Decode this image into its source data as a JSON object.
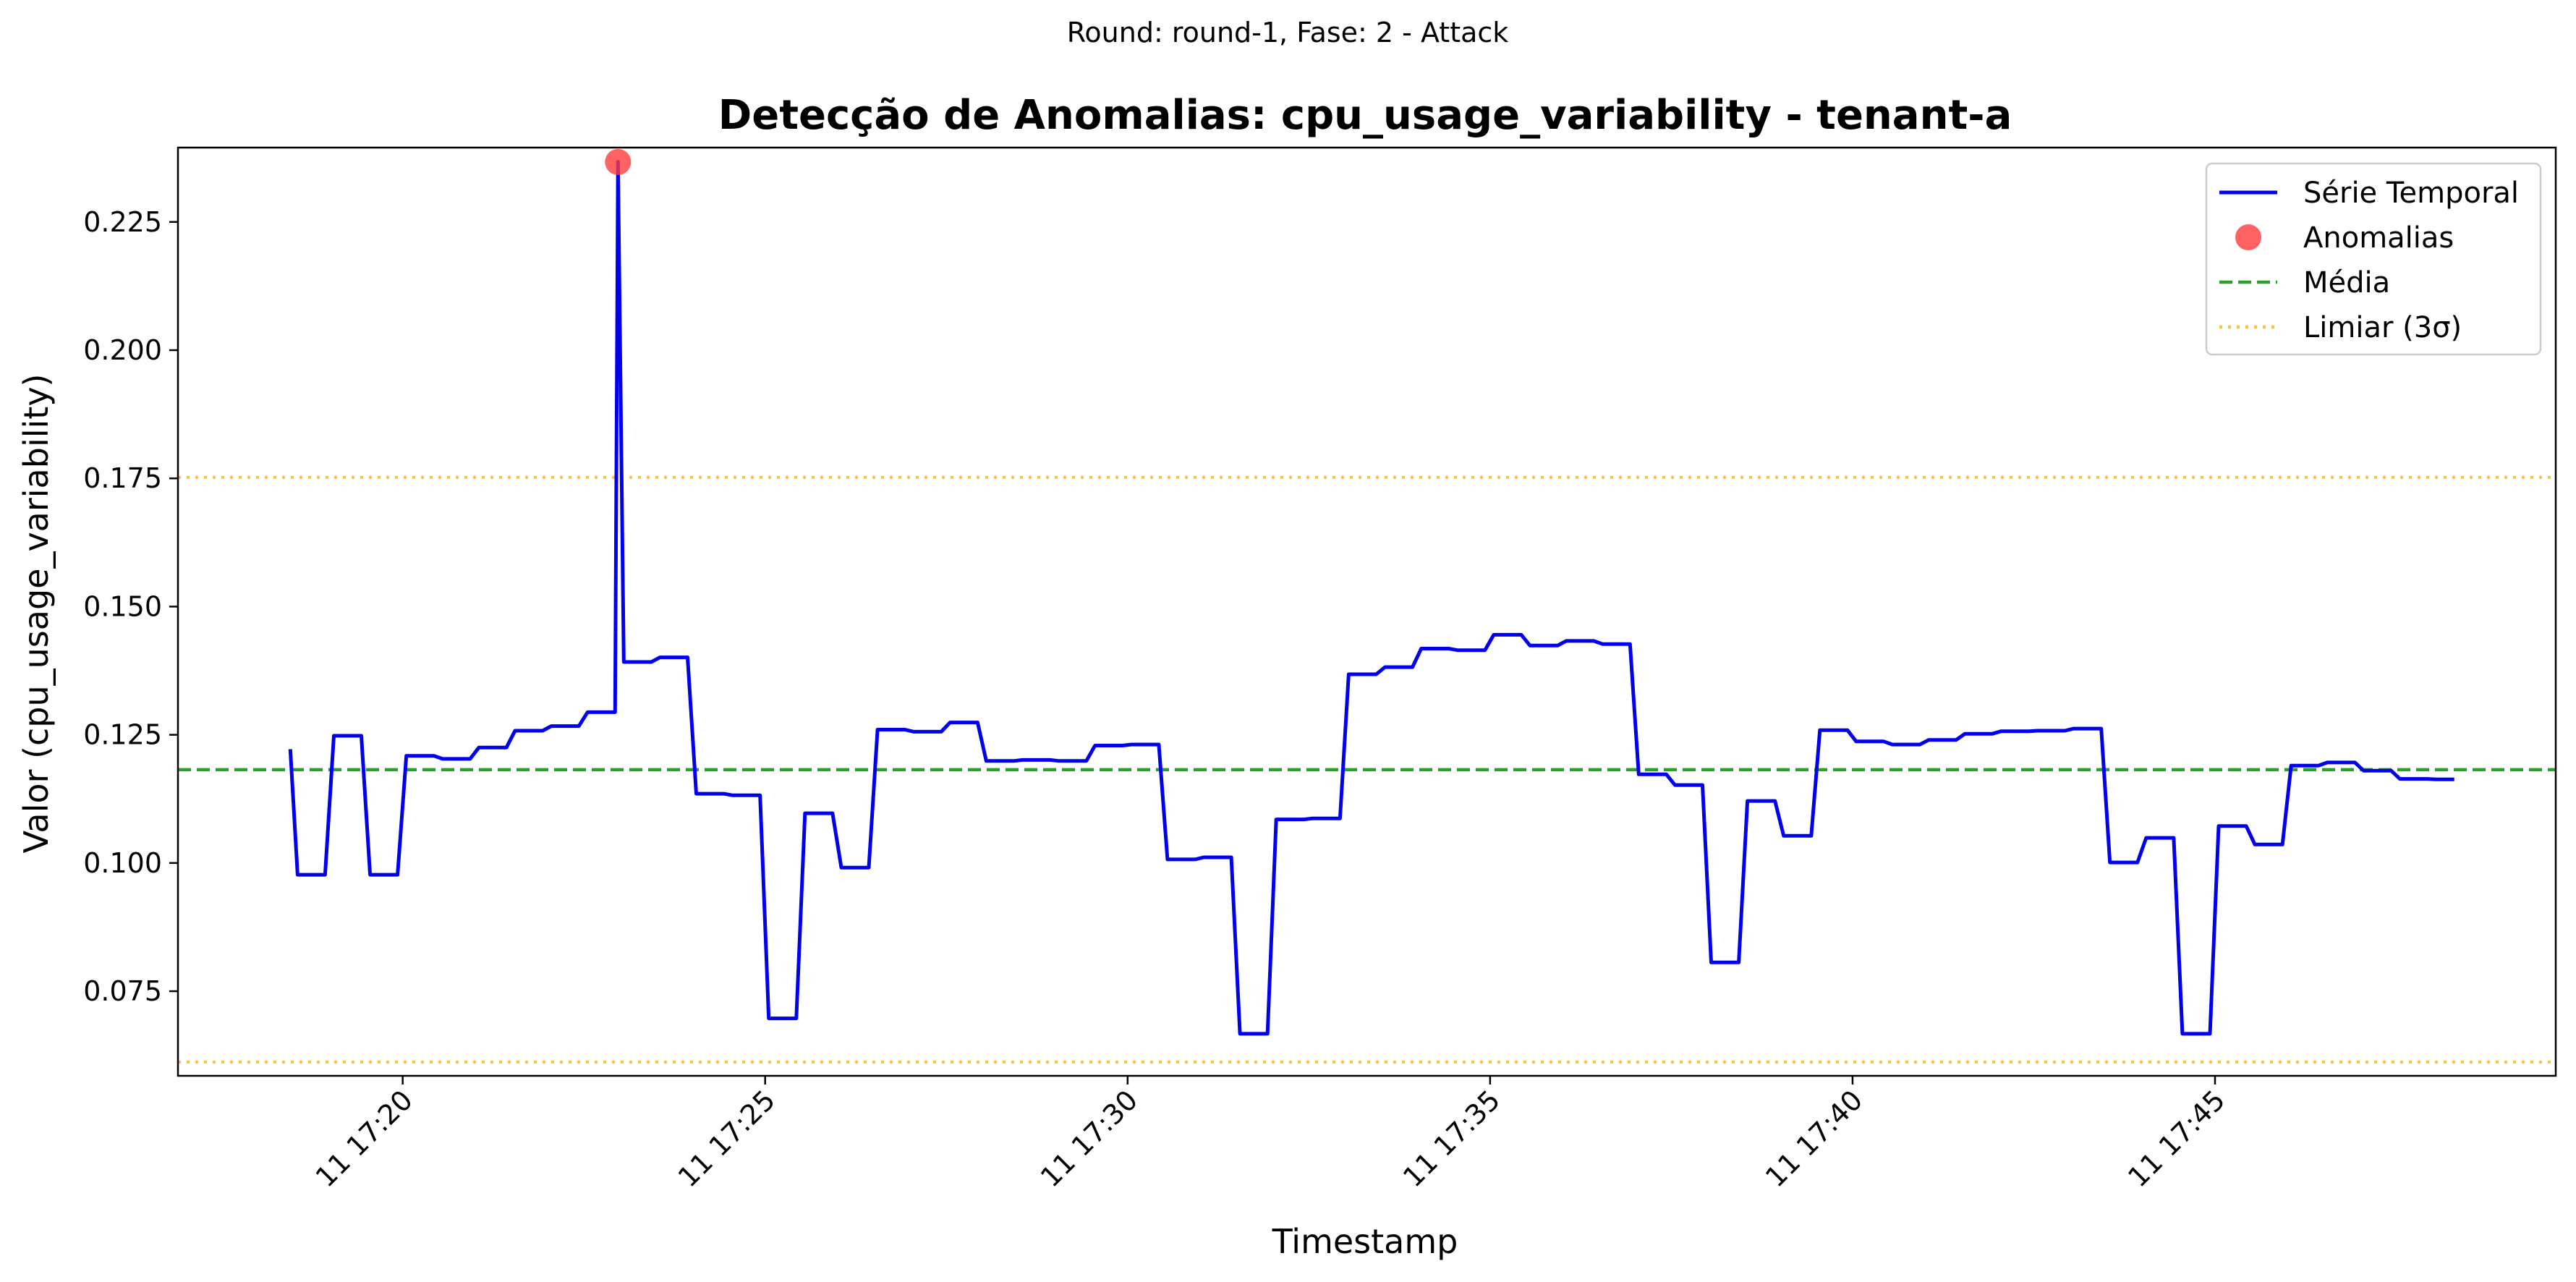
{
  "figure": {
    "suptitle": "Round: round-1, Fase: 2 - Attack"
  },
  "chart_data": {
    "type": "line",
    "title": "Detecção de Anomalias: cpu_usage_variability - tenant-a",
    "xlabel": "Timestamp",
    "ylabel": "Valor (cpu_usage_variability)",
    "x_unit": "minutes after 17:20 on day 11",
    "xlim": [
      -3.1,
      29.7
    ],
    "ylim": [
      0.0585,
      0.2395
    ],
    "xticks": [
      {
        "value": 0,
        "label": "11 17:20"
      },
      {
        "value": 5,
        "label": "11 17:25"
      },
      {
        "value": 10,
        "label": "11 17:30"
      },
      {
        "value": 15,
        "label": "11 17:35"
      },
      {
        "value": 20,
        "label": "11 17:40"
      },
      {
        "value": 25,
        "label": "11 17:45"
      }
    ],
    "yticks": [
      {
        "value": 0.075,
        "label": "0.075"
      },
      {
        "value": 0.1,
        "label": "0.100"
      },
      {
        "value": 0.125,
        "label": "0.125"
      },
      {
        "value": 0.15,
        "label": "0.150"
      },
      {
        "value": 0.175,
        "label": "0.175"
      },
      {
        "value": 0.2,
        "label": "0.200"
      },
      {
        "value": 0.225,
        "label": "0.225"
      }
    ],
    "grid": false,
    "legend_position": "top-right",
    "series": [
      {
        "name": "Série Temporal",
        "color": "#0000ee",
        "style": "solid",
        "points": [
          [
            -1.55,
            0.1222
          ],
          [
            -1.45,
            0.0977
          ],
          [
            -1.07,
            0.0977
          ],
          [
            -0.95,
            0.1248
          ],
          [
            -0.57,
            0.1248
          ],
          [
            -0.45,
            0.0977
          ],
          [
            -0.07,
            0.0977
          ],
          [
            0.05,
            0.1209
          ],
          [
            0.43,
            0.1209
          ],
          [
            0.55,
            0.1203
          ],
          [
            0.93,
            0.1203
          ],
          [
            1.05,
            0.1225
          ],
          [
            1.43,
            0.1225
          ],
          [
            1.55,
            0.1258
          ],
          [
            1.93,
            0.1258
          ],
          [
            2.05,
            0.1267
          ],
          [
            2.43,
            0.1267
          ],
          [
            2.55,
            0.1294
          ],
          [
            2.93,
            0.1294
          ],
          [
            2.97,
            0.2367
          ],
          [
            3.05,
            0.1392
          ],
          [
            3.43,
            0.1392
          ],
          [
            3.55,
            0.1401
          ],
          [
            3.93,
            0.1401
          ],
          [
            4.05,
            0.1135
          ],
          [
            4.43,
            0.1135
          ],
          [
            4.55,
            0.1132
          ],
          [
            4.93,
            0.1132
          ],
          [
            5.05,
            0.0697
          ],
          [
            5.43,
            0.0697
          ],
          [
            5.55,
            0.1097
          ],
          [
            5.93,
            0.1097
          ],
          [
            6.05,
            0.0991
          ],
          [
            6.43,
            0.0991
          ],
          [
            6.55,
            0.126
          ],
          [
            6.93,
            0.126
          ],
          [
            7.05,
            0.1256
          ],
          [
            7.43,
            0.1256
          ],
          [
            7.55,
            0.1274
          ],
          [
            7.93,
            0.1274
          ],
          [
            8.05,
            0.1199
          ],
          [
            8.43,
            0.1199
          ],
          [
            8.55,
            0.1201
          ],
          [
            8.93,
            0.1201
          ],
          [
            9.05,
            0.1199
          ],
          [
            9.43,
            0.1199
          ],
          [
            9.55,
            0.1229
          ],
          [
            9.93,
            0.1229
          ],
          [
            10.05,
            0.1231
          ],
          [
            10.43,
            0.1231
          ],
          [
            10.55,
            0.1007
          ],
          [
            10.93,
            0.1007
          ],
          [
            11.05,
            0.1011
          ],
          [
            11.43,
            0.1011
          ],
          [
            11.55,
            0.0667
          ],
          [
            11.93,
            0.0667
          ],
          [
            12.05,
            0.1085
          ],
          [
            12.43,
            0.1085
          ],
          [
            12.55,
            0.1087
          ],
          [
            12.93,
            0.1087
          ],
          [
            13.05,
            0.1368
          ],
          [
            13.43,
            0.1368
          ],
          [
            13.55,
            0.1382
          ],
          [
            13.93,
            0.1382
          ],
          [
            14.05,
            0.1418
          ],
          [
            14.43,
            0.1418
          ],
          [
            14.55,
            0.1415
          ],
          [
            14.93,
            0.1415
          ],
          [
            15.05,
            0.1445
          ],
          [
            15.43,
            0.1445
          ],
          [
            15.55,
            0.1424
          ],
          [
            15.93,
            0.1424
          ],
          [
            16.05,
            0.1433
          ],
          [
            16.43,
            0.1433
          ],
          [
            16.55,
            0.1427
          ],
          [
            16.93,
            0.1427
          ],
          [
            17.05,
            0.1173
          ],
          [
            17.43,
            0.1173
          ],
          [
            17.55,
            0.1152
          ],
          [
            17.93,
            0.1152
          ],
          [
            18.05,
            0.0806
          ],
          [
            18.43,
            0.0806
          ],
          [
            18.55,
            0.1121
          ],
          [
            18.93,
            0.1121
          ],
          [
            19.05,
            0.1053
          ],
          [
            19.43,
            0.1053
          ],
          [
            19.55,
            0.1259
          ],
          [
            19.93,
            0.1259
          ],
          [
            20.05,
            0.1237
          ],
          [
            20.43,
            0.1237
          ],
          [
            20.55,
            0.1231
          ],
          [
            20.93,
            0.1231
          ],
          [
            21.05,
            0.124
          ],
          [
            21.43,
            0.124
          ],
          [
            21.55,
            0.1252
          ],
          [
            21.93,
            0.1252
          ],
          [
            22.05,
            0.1257
          ],
          [
            22.43,
            0.1257
          ],
          [
            22.55,
            0.1258
          ],
          [
            22.93,
            0.1258
          ],
          [
            23.05,
            0.1262
          ],
          [
            23.43,
            0.1262
          ],
          [
            23.55,
            0.1001
          ],
          [
            23.93,
            0.1001
          ],
          [
            24.05,
            0.1049
          ],
          [
            24.43,
            0.1049
          ],
          [
            24.55,
            0.0667
          ],
          [
            24.93,
            0.0667
          ],
          [
            25.05,
            0.1072
          ],
          [
            25.43,
            0.1072
          ],
          [
            25.55,
            0.1036
          ],
          [
            25.93,
            0.1036
          ],
          [
            26.05,
            0.119
          ],
          [
            26.43,
            0.119
          ],
          [
            26.55,
            0.1196
          ],
          [
            26.93,
            0.1196
          ],
          [
            27.05,
            0.118
          ],
          [
            27.43,
            0.118
          ],
          [
            27.55,
            0.1164
          ],
          [
            27.93,
            0.1164
          ],
          [
            28.05,
            0.1163
          ],
          [
            28.3,
            0.1163
          ]
        ]
      },
      {
        "name": "Anomalias",
        "color": "#ff3b3b",
        "style": "marker",
        "points": [
          [
            2.97,
            0.2367
          ]
        ]
      },
      {
        "name": "Média",
        "color": "#2ca02c",
        "style": "dashed",
        "value": 0.1182
      },
      {
        "name": "Limiar (3σ)",
        "color": "#ffbf3f",
        "style": "dotted",
        "values": [
          0.1752,
          0.0612
        ]
      }
    ]
  }
}
